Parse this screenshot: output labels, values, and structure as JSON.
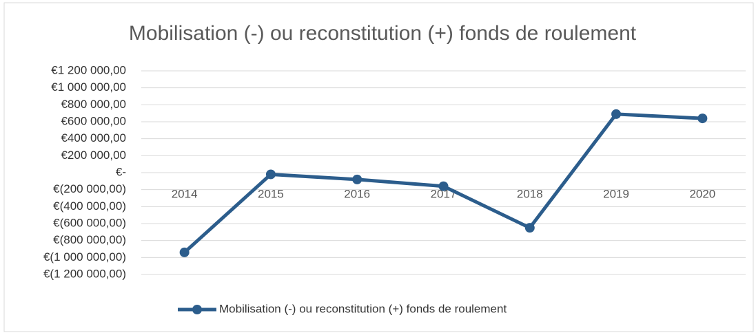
{
  "chart_data": {
    "type": "line",
    "title": "Mobilisation (-) ou reconstitution (+) fonds de roulement",
    "categories": [
      "2014",
      "2015",
      "2016",
      "2017",
      "2018",
      "2019",
      "2020"
    ],
    "series": [
      {
        "name": "Mobilisation (-) ou reconstitution (+) fonds de roulement",
        "color": "#2c5d8c",
        "values": [
          -940000,
          -20000,
          -80000,
          -160000,
          -650000,
          690000,
          640000
        ]
      }
    ],
    "ylim": [
      -1200000,
      1200000
    ],
    "yticks": [
      {
        "value": -1200000,
        "label": "€(1 200 000,00)"
      },
      {
        "value": -1000000,
        "label": "€(1 000 000,00)"
      },
      {
        "value": -800000,
        "label": "€(800 000,00)"
      },
      {
        "value": -600000,
        "label": "€(600 000,00)"
      },
      {
        "value": -400000,
        "label": "€(400 000,00)"
      },
      {
        "value": -200000,
        "label": "€(200 000,00)"
      },
      {
        "value": 0,
        "label": "€-"
      },
      {
        "value": 200000,
        "label": "€200 000,00"
      },
      {
        "value": 400000,
        "label": "€400 000,00"
      },
      {
        "value": 600000,
        "label": "€600 000,00"
      },
      {
        "value": 800000,
        "label": "€800 000,00"
      },
      {
        "value": 1000000,
        "label": "€1 000 000,00"
      },
      {
        "value": 1200000,
        "label": "€1 200 000,00"
      }
    ],
    "grid": true,
    "legend": "bottom"
  }
}
